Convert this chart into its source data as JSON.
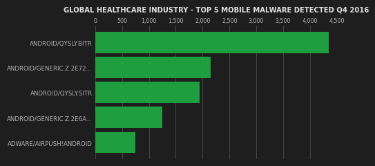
{
  "title": "GLOBAL HEALTHCARE INDUSTRY - TOP 5 MOBILE MALWARE DETECTED Q4 2016",
  "categories": [
    "ADWARE/AIRPUSH!ANDROID",
    "ANDROID/GENERIC.Z.2E6A...",
    "ANDROID/QYSLY.SITR",
    "ANDROID/GENERIC.Z.2E72...",
    "ANDROID/QYSLY.BITR"
  ],
  "values": [
    750,
    1250,
    1950,
    2150,
    4350
  ],
  "bar_color": "#1e9e3e",
  "bg_color": "#1e1e1e",
  "text_color": "#b0b0b0",
  "grid_color": "#4a4a4a",
  "title_color": "#e0e0e0",
  "xlim": [
    0,
    4500
  ],
  "xticks": [
    0,
    500,
    1000,
    1500,
    2000,
    2500,
    3000,
    3500,
    4000,
    4500
  ],
  "title_fontsize": 7.2,
  "label_fontsize": 6.2,
  "tick_fontsize": 5.8,
  "bar_height": 0.85
}
